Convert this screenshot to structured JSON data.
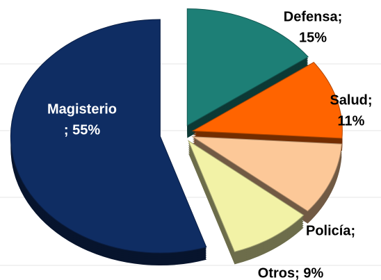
{
  "chart_data": {
    "type": "pie",
    "labels": [
      [
        "Magisterio",
        "; 55%"
      ],
      [
        "Defensa;",
        "15%"
      ],
      [
        "Salud;",
        "11%"
      ],
      [
        "Policía; "
      ],
      [
        "Otros; 9%"
      ]
    ],
    "values": [
      55,
      15,
      11,
      10,
      9
    ],
    "colors": [
      "#0f2d63",
      "#1d7f76",
      "#ff6400",
      "#fcc898",
      "#f2f2a6"
    ],
    "label_colors": [
      "#ffffff",
      "#000000",
      "#000000",
      "#000000",
      "#000000"
    ]
  }
}
